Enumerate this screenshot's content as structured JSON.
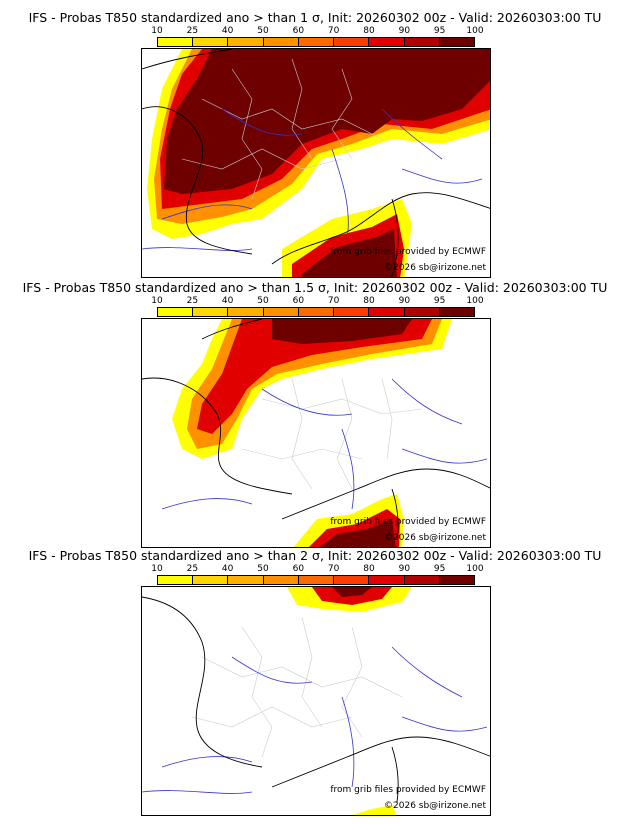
{
  "panels": [
    {
      "title": "IFS - Probas T850  standardized ano > than 1 σ, Init: 20260302 00z - Valid: 20260303:00 TU",
      "credit_ecmwf": "from grib files provided by ECMWF",
      "credit_site": "©2026 sb@irizone.net"
    },
    {
      "title": "IFS - Probas T850  standardized ano > than 1.5 σ, Init: 20260302 00z - Valid: 20260303:00 TU",
      "credit_ecmwf": "from grib files provided by ECMWF",
      "credit_site": "©2026 sb@irizone.net"
    },
    {
      "title": "IFS - Probas T850  standardized ano > than 2 σ, Init: 20260302 00z - Valid: 20260303:00 TU",
      "credit_ecmwf": "from grib files provided by ECMWF",
      "credit_site": "©2026 sb@irizone.net"
    }
  ],
  "colorbar": {
    "ticks": [
      "10",
      "25",
      "40",
      "50",
      "60",
      "70",
      "80",
      "90",
      "95",
      "100"
    ],
    "colors": [
      "#ffff00",
      "#ffd700",
      "#ffb000",
      "#ff9000",
      "#ff6a00",
      "#ff3c00",
      "#e00000",
      "#b00000",
      "#6e0000"
    ]
  },
  "map_colors": {
    "coast": "#000000",
    "rivers": "#3333cc",
    "admin": "#aaaaaa",
    "background": "#ffffff"
  }
}
